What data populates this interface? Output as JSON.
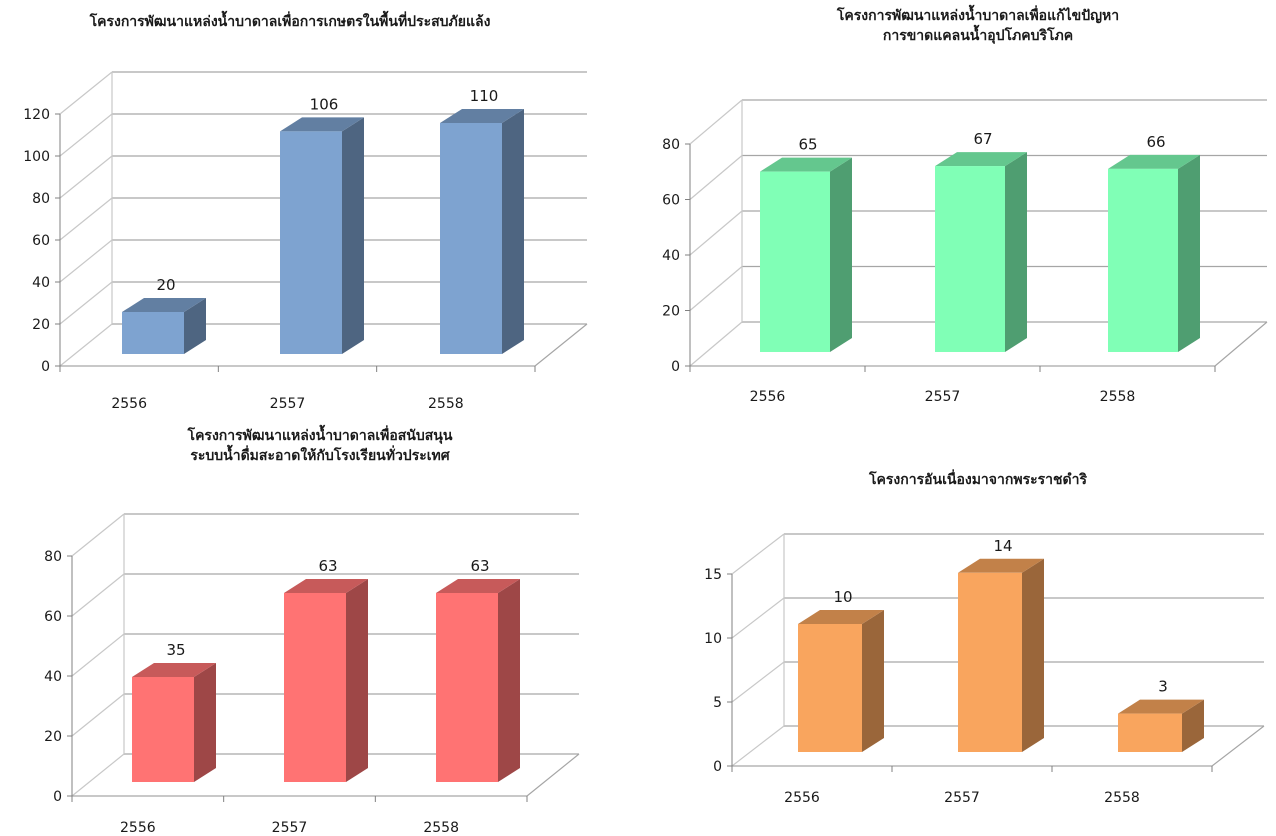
{
  "chart_data": [
    {
      "type": "bar",
      "title_lines": [
        "โครงการพัฒนาแหล่งน้ำบาดาลเพื่อการเกษตรในพื้นที่ประสบภัยแล้ง"
      ],
      "categories": [
        "2556",
        "2557",
        "2558"
      ],
      "values": [
        20,
        106,
        110
      ],
      "ylim": [
        0,
        120
      ],
      "yticks": [
        0,
        20,
        40,
        60,
        80,
        100,
        120
      ],
      "color": "#7EA3D0",
      "grid": true,
      "legend": "none"
    },
    {
      "type": "bar",
      "title_lines": [
        "โครงการพัฒนาแหล่งน้ำบาดาลเพื่อแก้ไขปัญหา",
        "การขาดแคลนน้ำอุปโภคบริโภค"
      ],
      "categories": [
        "2556",
        "2557",
        "2558"
      ],
      "values": [
        65,
        67,
        66
      ],
      "ylim": [
        0,
        80
      ],
      "yticks": [
        0,
        20,
        40,
        60,
        80
      ],
      "color": "#80FFB6",
      "grid": true,
      "legend": "none"
    },
    {
      "type": "bar",
      "title_lines": [
        "โครงการพัฒนาแหล่งน้ำบาดาลเพื่อสนับสนุน",
        "ระบบน้ำดื่มสะอาดให้กับโรงเรียนทั่วประเทศ"
      ],
      "categories": [
        "2556",
        "2557",
        "2558"
      ],
      "values": [
        35,
        63,
        63
      ],
      "ylim": [
        0,
        80
      ],
      "yticks": [
        0,
        20,
        40,
        60,
        80
      ],
      "color": "#FF7373",
      "grid": true,
      "legend": "none"
    },
    {
      "type": "bar",
      "title_lines": [
        "โครงการอันเนื่องมาจากพระราชดำริ"
      ],
      "categories": [
        "2556",
        "2557",
        "2558"
      ],
      "values": [
        10,
        14,
        3
      ],
      "ylim": [
        0,
        15
      ],
      "yticks": [
        0,
        5,
        10,
        15
      ],
      "color": "#F9A55E",
      "grid": true,
      "legend": "none"
    }
  ]
}
